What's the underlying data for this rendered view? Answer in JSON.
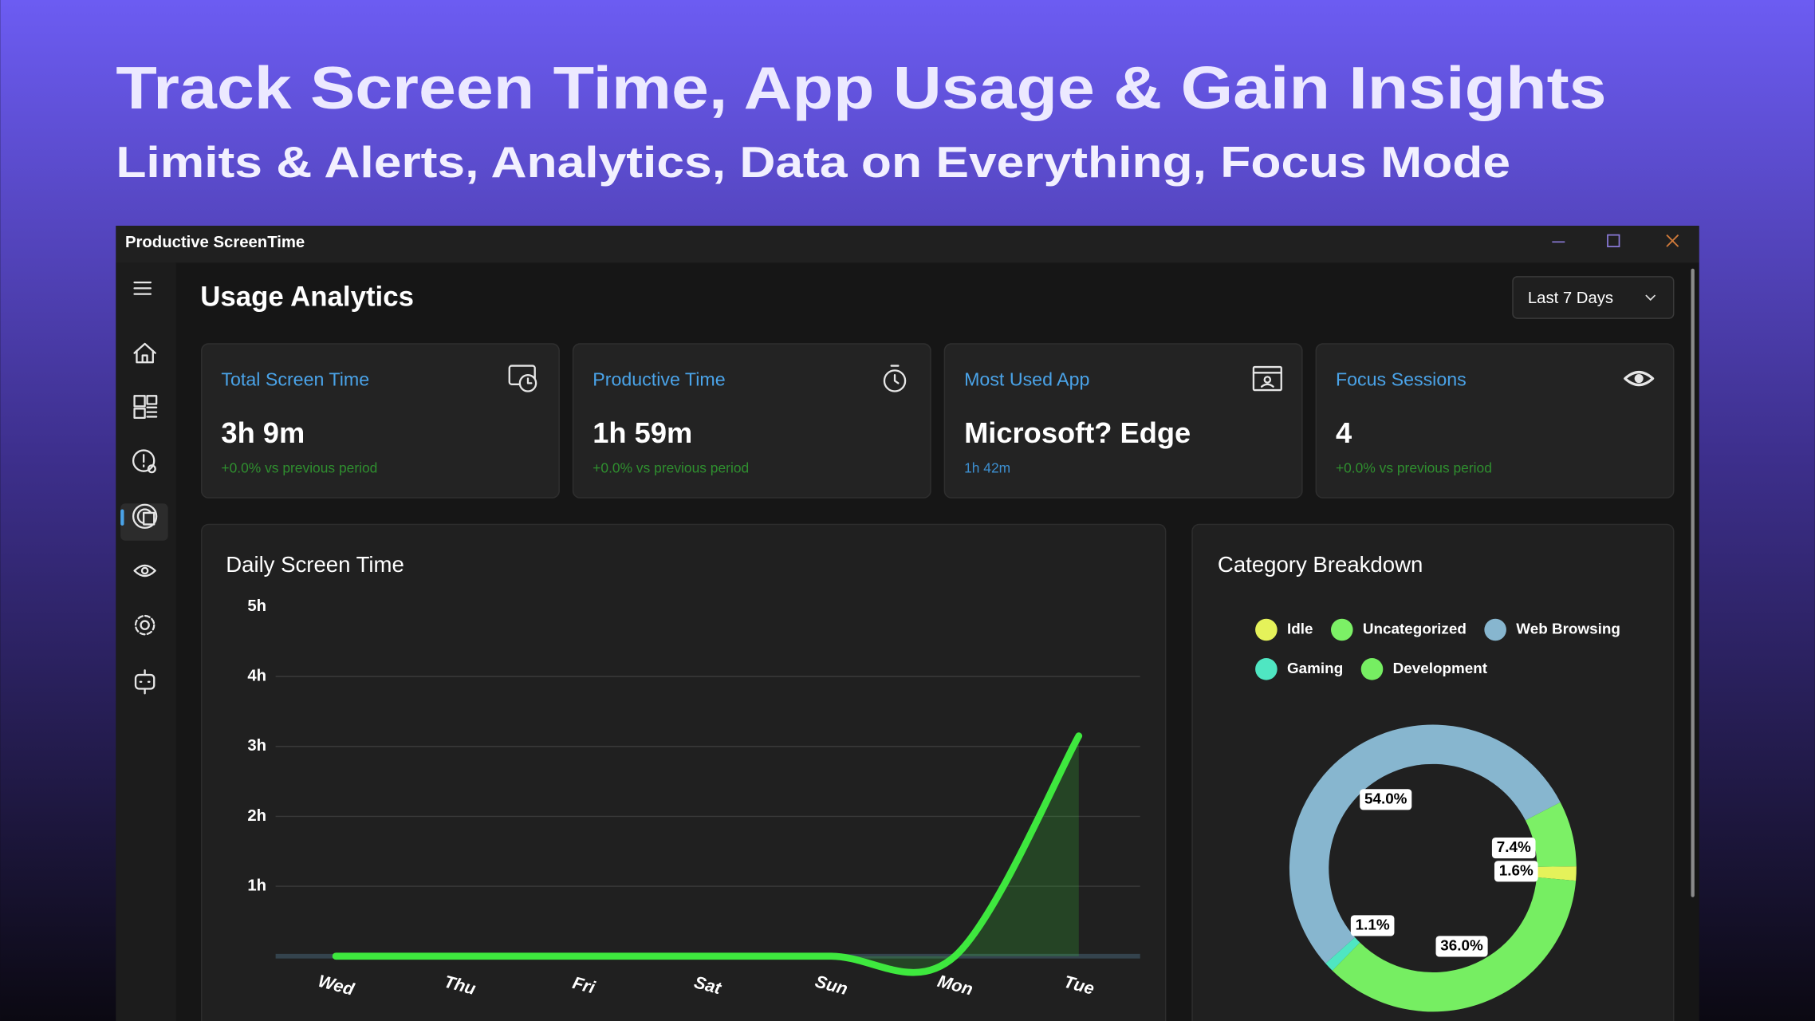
{
  "banner": {
    "title": "Track Screen Time, App Usage & Gain Insights",
    "subtitle": "Limits & Alerts, Analytics, Data on Everything, Focus Mode"
  },
  "window": {
    "title": "Productive ScreenTime"
  },
  "page": {
    "title": "Usage Analytics",
    "range": "Last 7 Days"
  },
  "cards": [
    {
      "label": "Total Screen Time",
      "value": "3h 9m",
      "note": "+0.0% vs previous period"
    },
    {
      "label": "Productive Time",
      "value": "1h 59m",
      "note": "+0.0% vs previous period"
    },
    {
      "label": "Most Used App",
      "value": "Microsoft? Edge",
      "note": "1h 42m"
    },
    {
      "label": "Focus Sessions",
      "value": "4",
      "note": "+0.0% vs previous period"
    }
  ],
  "chart_data": [
    {
      "type": "line",
      "title": "Daily Screen Time",
      "categories": [
        "Wed",
        "Thu",
        "Fri",
        "Sat",
        "Sun",
        "Mon",
        "Tue"
      ],
      "values": [
        0,
        0,
        0,
        0,
        0,
        0,
        3.15
      ],
      "color": "#3ee83e",
      "ylim": [
        0,
        5
      ],
      "yticks": [
        {
          "value": 1,
          "label": "1h"
        },
        {
          "value": 2,
          "label": "2h"
        },
        {
          "value": 3,
          "label": "3h"
        },
        {
          "value": 4,
          "label": "4h"
        },
        {
          "value": 5,
          "label": "5h"
        }
      ],
      "grid": true
    },
    {
      "type": "pie",
      "title": "Category Breakdown",
      "categories": [
        "Idle",
        "Uncategorized",
        "Web Browsing",
        "Gaming",
        "Development"
      ],
      "values": [
        1.6,
        7.4,
        54.0,
        1.1,
        36.0
      ],
      "value_labels": [
        "1.6%",
        "7.4%",
        "54.0%",
        "1.1%",
        "36.0%"
      ],
      "colors": [
        "#e5f25a",
        "#7cf066",
        "#87b6cf",
        "#4fe6c2",
        "#76ee62"
      ]
    }
  ]
}
